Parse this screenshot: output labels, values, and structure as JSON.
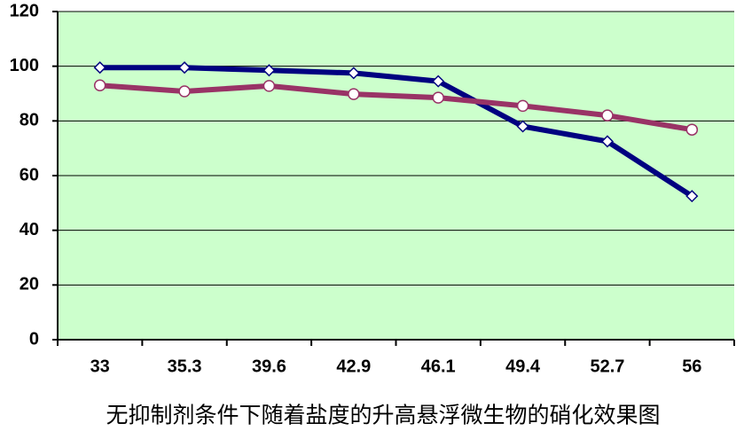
{
  "chart_data": {
    "type": "line",
    "title": "无抑制剂条件下随着盐度的升高悬浮微生物的硝化效果图",
    "categories": [
      "33",
      "35.3",
      "39.6",
      "42.9",
      "46.1",
      "49.4",
      "52.7",
      "56"
    ],
    "series": [
      {
        "color": "#000080",
        "marker": "diamond",
        "values": [
          99.5,
          99.5,
          98.5,
          97.5,
          94.5,
          78,
          72.5,
          52.5
        ]
      },
      {
        "color": "#993366",
        "marker": "circle",
        "values": [
          93,
          90.8,
          92.8,
          89.8,
          88.5,
          85.5,
          82,
          76.8
        ]
      }
    ],
    "ylim": [
      0,
      120
    ],
    "yticks": [
      0,
      20,
      40,
      60,
      80,
      100,
      120
    ],
    "grid": true,
    "background": "#ccffcc"
  }
}
